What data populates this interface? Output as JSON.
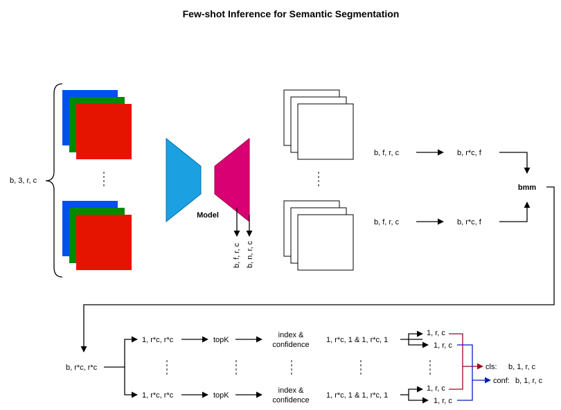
{
  "title": "Few-shot Inference for Semantic Segmentation",
  "colors": {
    "blue_img": "#0050ef",
    "green_img": "#008a00",
    "red_img": "#e51400",
    "encoder": "#1ba1e2",
    "decoder": "#d80073",
    "cls_arrow": "#a20025",
    "conf_arrow": "#001dbc"
  },
  "labels": {
    "input_shape": "b, 3, r, c",
    "model": "Model",
    "feat_out": "b, f, r, c",
    "logit_out": "b, n, r, c",
    "top_bfrc": "b, f, r, c",
    "top_brcf": "b, r*c, f",
    "bot_bfrc": "b, f, r, c",
    "bot_brcf": "b, r*c, f",
    "bmm": "bmm",
    "brcrc": "b, r*c, r*c",
    "row1_in": "1, r*c, r*c",
    "row1_topk": "topK",
    "row1_index": "index &",
    "row1_conf": "confidence",
    "row1_pair": "1, r*c, 1 & 1, r*c, 1",
    "row1_a": "1, r, c",
    "row1_b": "1, r, c",
    "row2_in": "1, r*c, r*c",
    "row2_topk": "topK",
    "row2_index": "index &",
    "row2_conf": "confidence",
    "row2_pair": "1, r*c, 1 & 1, r*c, 1",
    "row2_a": "1, r, c",
    "row2_b": "1, r, c",
    "cls_label": "cls:",
    "cls_shape": "b, 1, r, c",
    "conf_label": "conf:",
    "conf_shape": "b, 1, r, c"
  }
}
